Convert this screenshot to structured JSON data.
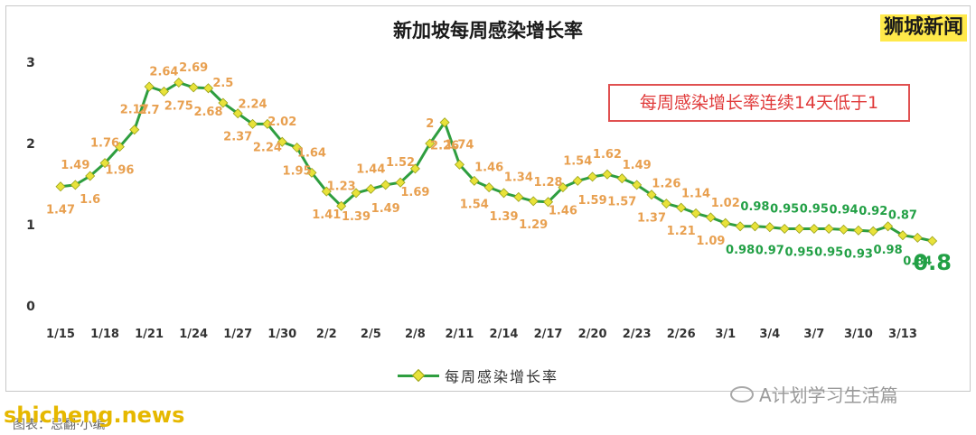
{
  "title": "新加坡每周感染增长率",
  "brand": "狮城新闻",
  "annotation": "每周感染增长率连续14天低于1",
  "legend_label": "每周感染增长率",
  "wechat_watermark": "A计划学习生活篇",
  "site_watermark": "shicheng.news",
  "source_note": "图表：忌翻·小编",
  "colors": {
    "line": "#2e9e3f",
    "marker": "#e8e23a",
    "label_above_one": "#e8a050",
    "label_below_one": "#22a045",
    "annotation": "#e03a3a",
    "brand_bg": "#ffe94a"
  },
  "chart_data": {
    "type": "line",
    "title": "新加坡每周感染增长率",
    "xlabel": "",
    "ylabel": "",
    "ylim": [
      0,
      3
    ],
    "yticks": [
      "0",
      "1",
      "2",
      "3"
    ],
    "xtick_labels": [
      "1/15",
      "1/18",
      "1/21",
      "1/24",
      "1/27",
      "1/30",
      "2/2",
      "2/5",
      "2/8",
      "2/11",
      "2/14",
      "2/17",
      "2/20",
      "2/23",
      "2/26",
      "3/1",
      "3/4",
      "3/7",
      "3/10",
      "3/13"
    ],
    "grid": false,
    "legend_position": "bottom",
    "series": [
      {
        "name": "每周感染增长率",
        "values": [
          1.47,
          1.49,
          1.6,
          1.76,
          1.96,
          2.17,
          2.7,
          2.64,
          2.75,
          2.69,
          2.68,
          2.5,
          2.37,
          2.24,
          2.24,
          2.02,
          1.95,
          1.64,
          1.41,
          1.23,
          1.39,
          1.44,
          1.49,
          1.52,
          1.69,
          2.0,
          2.26,
          1.74,
          1.54,
          1.46,
          1.39,
          1.34,
          1.29,
          1.28,
          1.46,
          1.54,
          1.59,
          1.62,
          1.57,
          1.49,
          1.37,
          1.26,
          1.21,
          1.14,
          1.09,
          1.02,
          0.98,
          0.98,
          0.97,
          0.95,
          0.95,
          0.95,
          0.95,
          0.94,
          0.93,
          0.92,
          0.98,
          0.87,
          0.84,
          0.8
        ],
        "data_labels": [
          "1.47",
          "1.49",
          "1.6",
          "1.76",
          "1.96",
          "2.17",
          "2.7",
          "2.64",
          "2.75",
          "2.69",
          "2.68",
          "2.5",
          "2.37",
          "2.24",
          "2.24",
          "2.02",
          "1.95",
          "1.64",
          "1.41",
          "1.23",
          "1.39",
          "1.44",
          "1.49",
          "1.52",
          "1.69",
          "2",
          "2.26",
          "1.74",
          "1.54",
          "1.46",
          "1.39",
          "1.34",
          "1.29",
          "1.28",
          "1.46",
          "1.54",
          "1.59",
          "1.62",
          "1.57",
          "1.49",
          "1.37",
          "1.26",
          "1.21",
          "1.14",
          "1.09",
          "1.02",
          "0.98",
          "0.98",
          "0.97",
          "0.95",
          "0.95",
          "0.95",
          "0.95",
          "0.94",
          "0.93",
          "0.92",
          "0.98",
          "0.87",
          "0.84",
          "0.8"
        ]
      }
    ]
  }
}
